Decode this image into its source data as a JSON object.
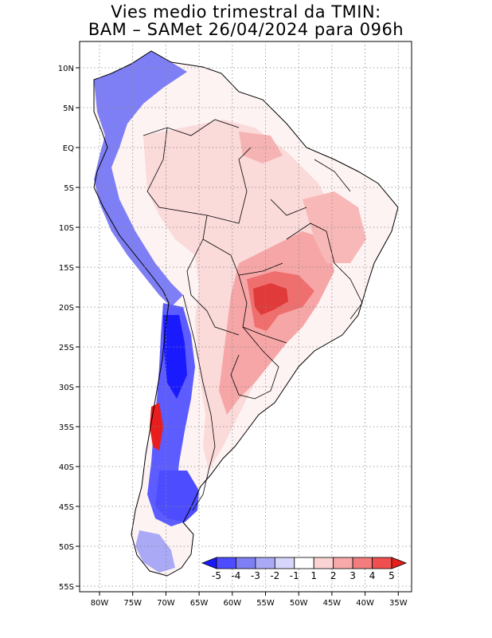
{
  "title": {
    "line1": "Vies medio trimestral da TMIN:",
    "line2": "BAM – SAMet 26/04/2024  para 096h"
  },
  "lon_ticks": [
    "80W",
    "75W",
    "70W",
    "65W",
    "60W",
    "55W",
    "50W",
    "45W",
    "40W",
    "35W"
  ],
  "lat_ticks": [
    "10N",
    "5N",
    "EQ",
    "5S",
    "10S",
    "15S",
    "20S",
    "25S",
    "30S",
    "35S",
    "40S",
    "45S",
    "50S",
    "55S"
  ],
  "colorbar": {
    "labels": [
      "-5",
      "-4",
      "-3",
      "-2",
      "-1",
      "1",
      "2",
      "3",
      "4",
      "5"
    ],
    "colors": [
      "#1a1aff",
      "#4d4dff",
      "#7f7ff5",
      "#a9a9f5",
      "#d6d6fa",
      "#ffffff",
      "#fbd3d3",
      "#f8a9a9",
      "#f37d7d",
      "#ef4f4f",
      "#e81e1e"
    ]
  },
  "chart_data": {
    "type": "heatmap",
    "variable": "TMIN",
    "lon_range": [
      -82,
      -35
    ],
    "lat_range": [
      13,
      -56
    ],
    "grid": true
  }
}
